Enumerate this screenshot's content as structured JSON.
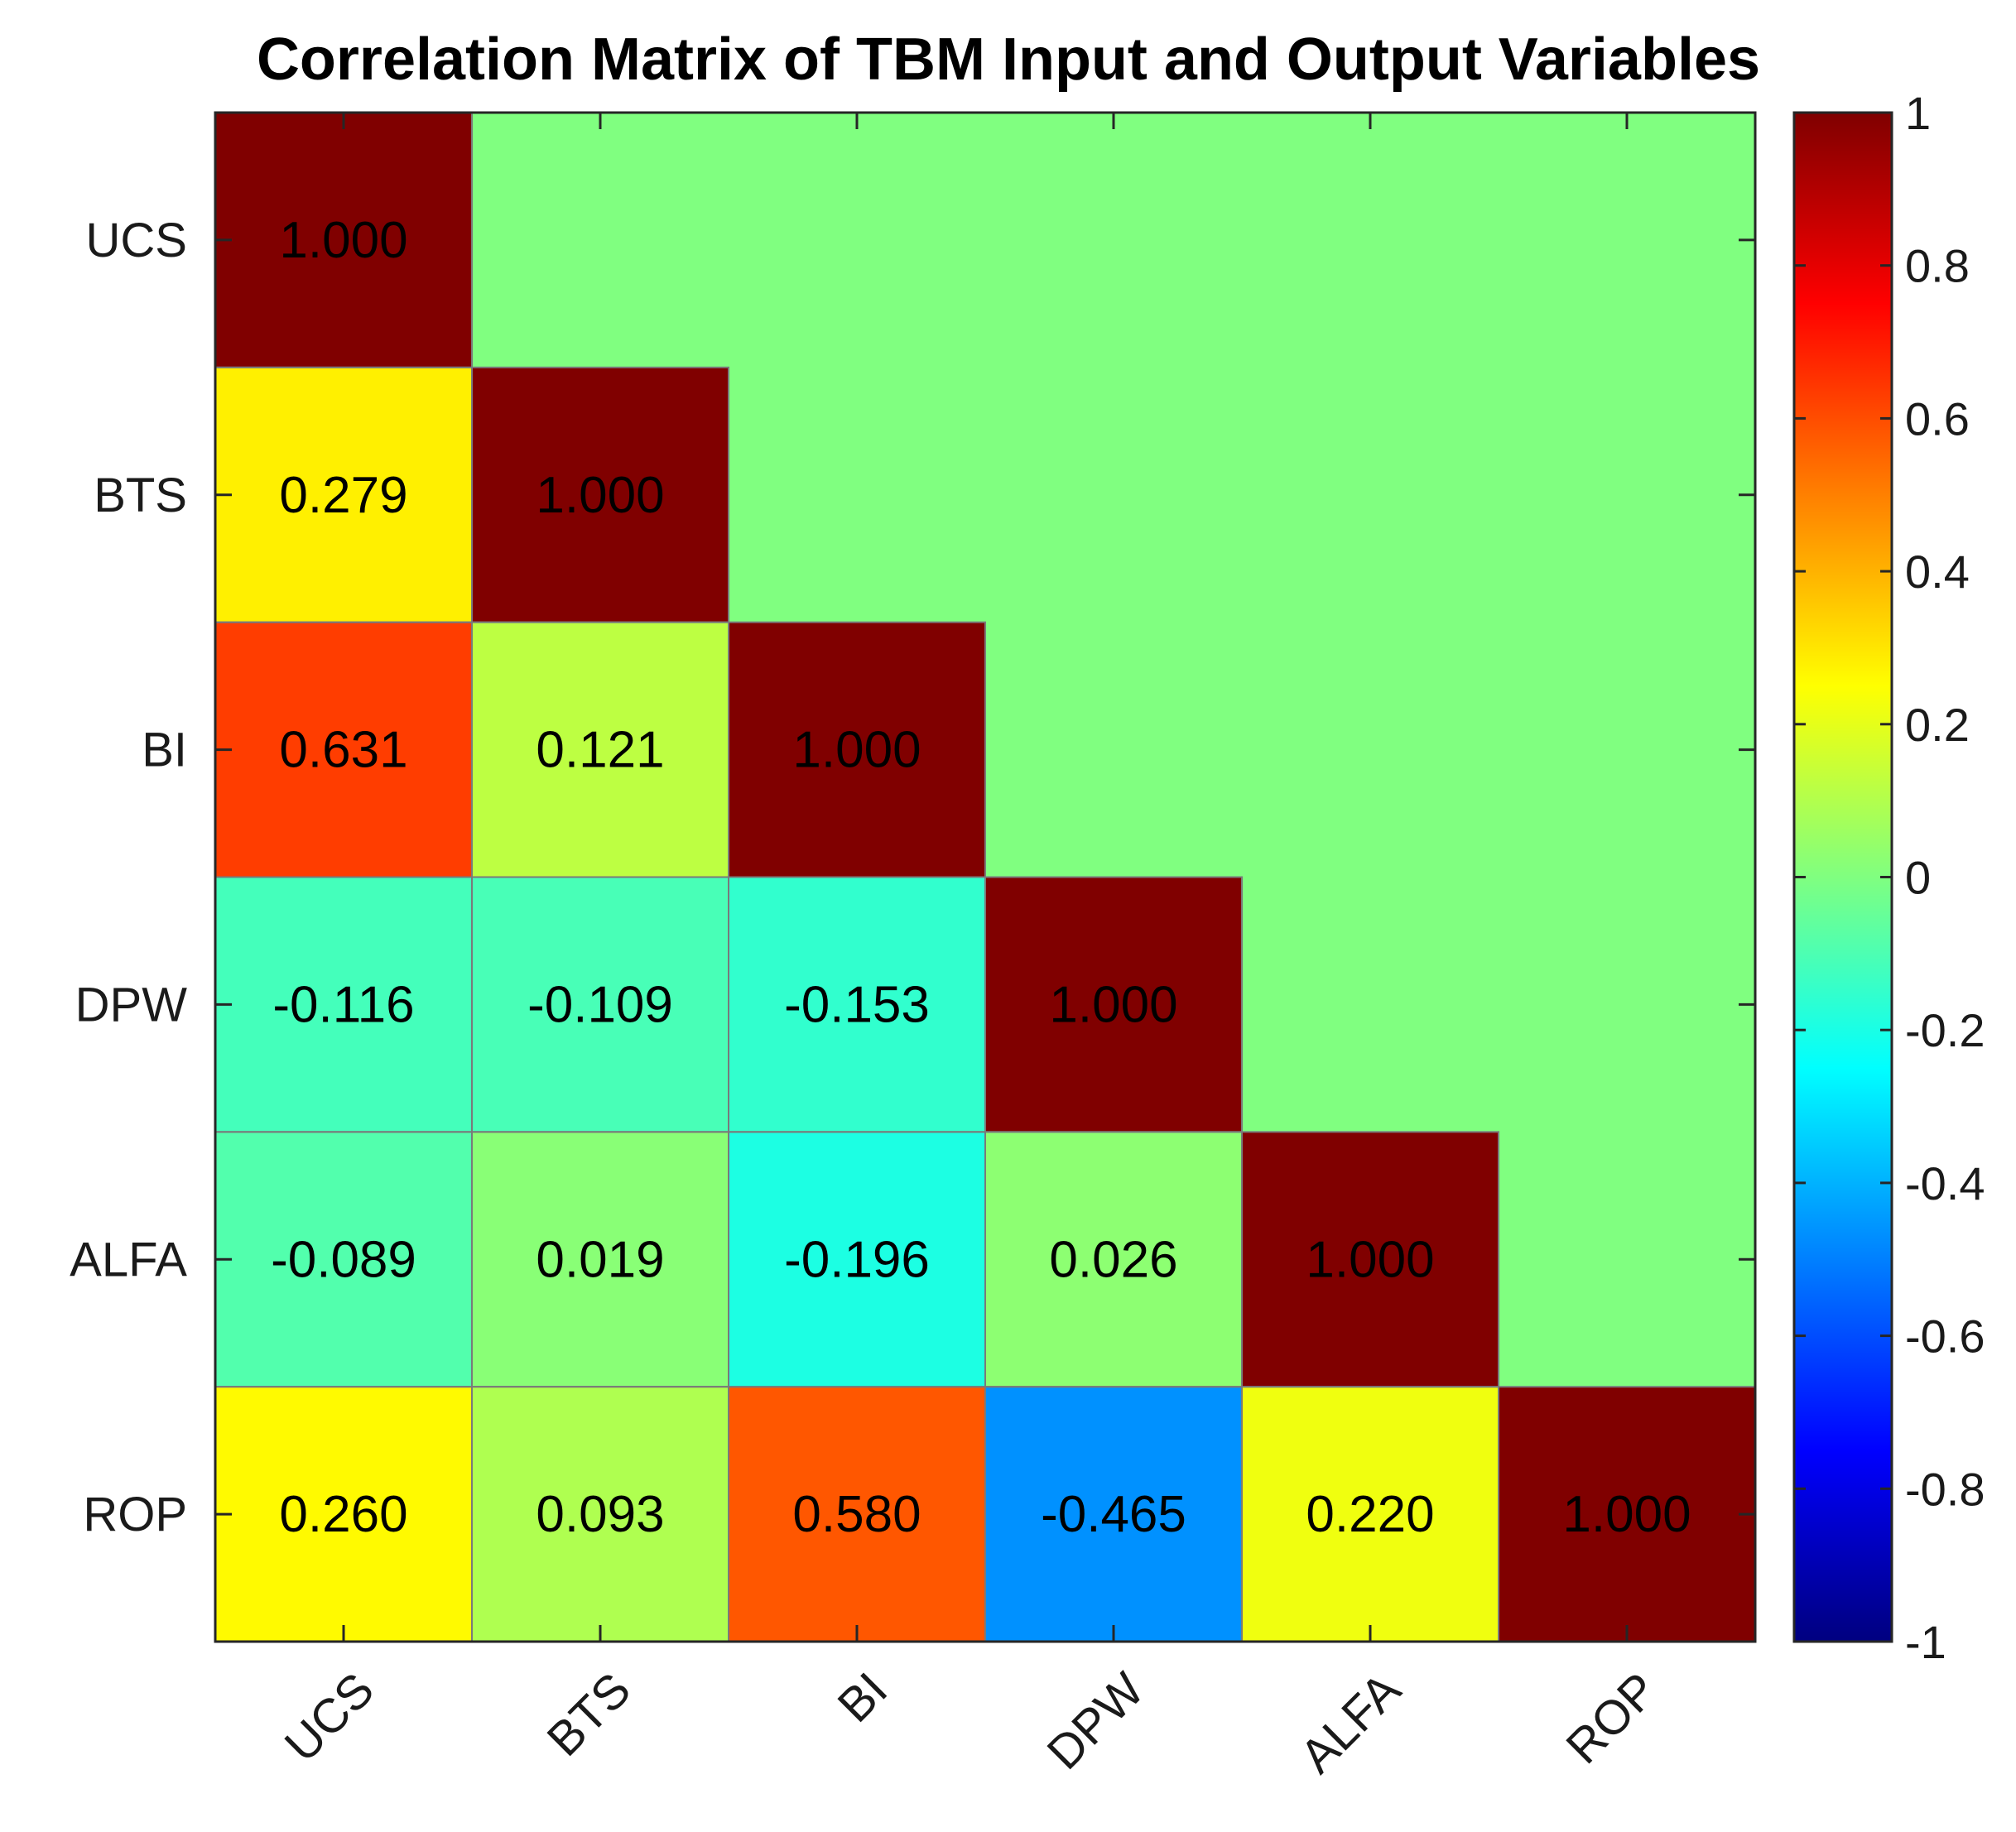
{
  "chart_data": {
    "type": "heatmap",
    "title": "Correlation Matrix of TBM Input and Output Variables",
    "xlabel": "",
    "ylabel": "",
    "variables": [
      "UCS",
      "BTS",
      "BI",
      "DPW",
      "ALFA",
      "ROP"
    ],
    "colormap": "jet",
    "clim": [
      -1,
      1
    ],
    "upper_triangle_value": 0,
    "matrix": [
      [
        1.0,
        null,
        null,
        null,
        null,
        null
      ],
      [
        0.279,
        1.0,
        null,
        null,
        null,
        null
      ],
      [
        0.631,
        0.121,
        1.0,
        null,
        null,
        null
      ],
      [
        -0.116,
        -0.109,
        -0.153,
        1.0,
        null,
        null
      ],
      [
        -0.089,
        0.019,
        -0.196,
        0.026,
        1.0,
        null
      ],
      [
        0.26,
        0.093,
        0.58,
        -0.465,
        0.22,
        1.0
      ]
    ],
    "cell_labels": [
      [
        "1.000",
        "",
        "",
        "",
        "",
        ""
      ],
      [
        "0.279",
        "1.000",
        "",
        "",
        "",
        ""
      ],
      [
        "0.631",
        "0.121",
        "1.000",
        "",
        "",
        ""
      ],
      [
        "-0.116",
        "-0.109",
        "-0.153",
        "1.000",
        "",
        ""
      ],
      [
        "-0.089",
        "0.019",
        "-0.196",
        "0.026",
        "1.000",
        ""
      ],
      [
        "0.260",
        "0.093",
        "0.580",
        "-0.465",
        "0.220",
        "1.000"
      ]
    ],
    "colorbar": {
      "ticks": [
        1,
        0.8,
        0.6,
        0.4,
        0.2,
        0,
        -0.2,
        -0.4,
        -0.6,
        -0.8,
        -1
      ],
      "tick_labels": [
        "1",
        "0.8",
        "0.6",
        "0.4",
        "0.2",
        "0",
        "-0.2",
        "-0.4",
        "-0.6",
        "-0.8",
        "-1"
      ]
    }
  }
}
